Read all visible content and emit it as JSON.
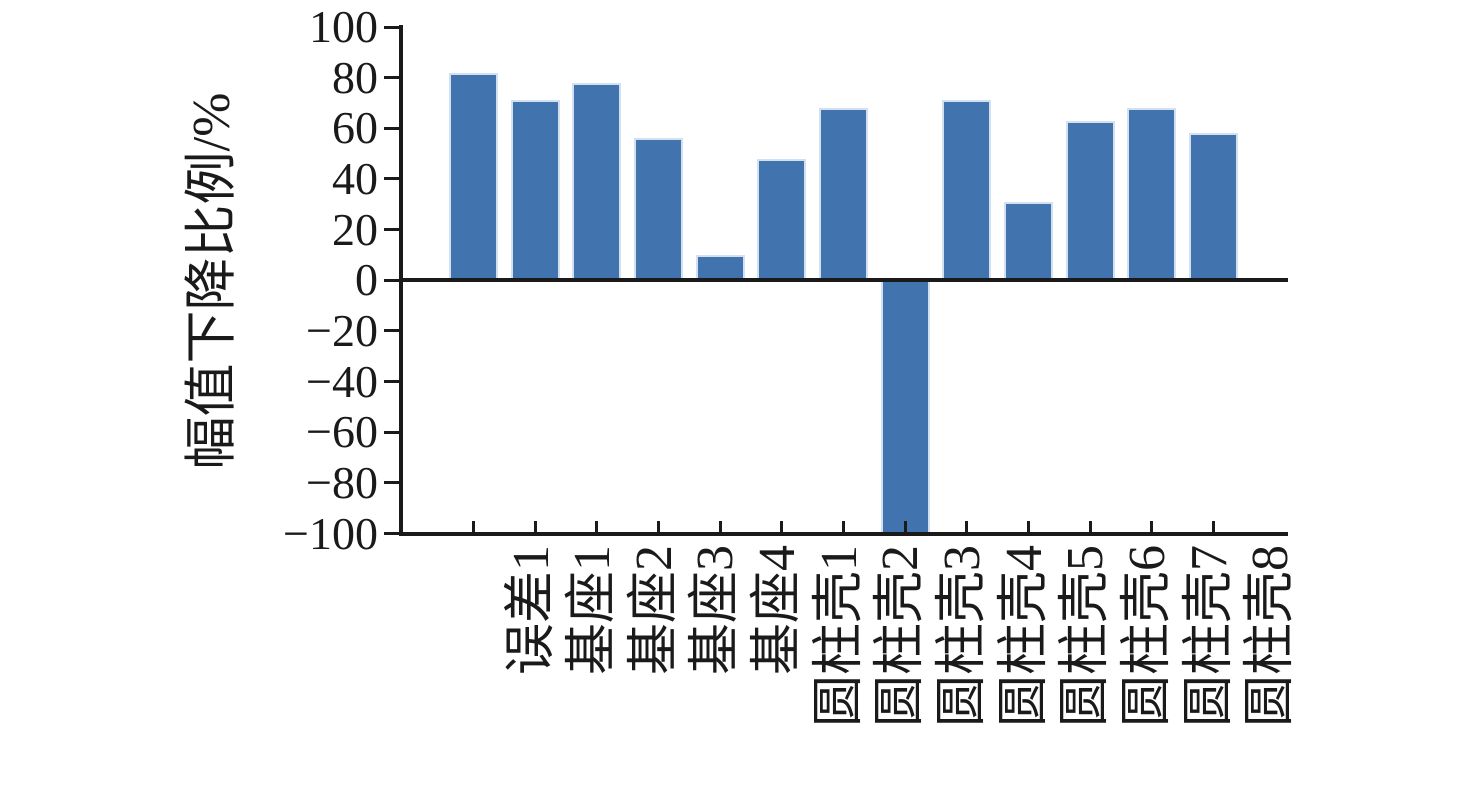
{
  "chart_data": {
    "type": "bar",
    "title": "",
    "xlabel": "",
    "ylabel": "幅值下降比例/%",
    "categories": [
      "误差1",
      "基座1",
      "基座2",
      "基座3",
      "基座4",
      "圆柱壳1",
      "圆柱壳2",
      "圆柱壳3",
      "圆柱壳4",
      "圆柱壳5",
      "圆柱壳6",
      "圆柱壳7",
      "圆柱壳8"
    ],
    "values": [
      82,
      71,
      78,
      56,
      10,
      48,
      68,
      -100,
      71,
      31,
      63,
      68,
      58
    ],
    "ylim": [
      -100,
      100
    ],
    "yticks": [
      100,
      80,
      60,
      40,
      20,
      0,
      -20,
      -40,
      -60,
      -80,
      -100
    ],
    "ytick_labels": [
      "100",
      "80",
      "60",
      "40",
      "20",
      "0",
      "−20",
      "−40",
      "−60",
      "−80",
      "−100"
    ],
    "x_tick_rotation_deg": 90,
    "grid": false,
    "legend": null,
    "colors": {
      "bar_fill": "#4173AE",
      "bar_edge": "#D3E0EF",
      "axis": "#1A1A1A",
      "text": "#1A1A1A",
      "background": "#FFFFFF"
    }
  }
}
